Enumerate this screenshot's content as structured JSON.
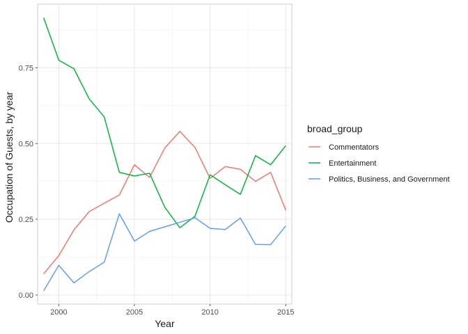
{
  "chart_data": {
    "type": "line",
    "xlabel": "Year",
    "ylabel": "Occupation of Guests, by year",
    "xlim": [
      1998.6,
      2015.4
    ],
    "ylim": [
      -0.03,
      0.96
    ],
    "x_ticks": [
      2000,
      2005,
      2010,
      2015
    ],
    "x_tick_labels": [
      "2000",
      "2005",
      "2010",
      "2015"
    ],
    "y_ticks": [
      0.0,
      0.25,
      0.5,
      0.75
    ],
    "y_tick_labels": [
      "0.00",
      "0.25",
      "0.50",
      "0.75"
    ],
    "grid": true,
    "legend": {
      "title": "broad_group",
      "position": "right"
    },
    "x": [
      1999,
      2000,
      2001,
      2002,
      2003,
      2004,
      2005,
      2006,
      2007,
      2008,
      2009,
      2010,
      2011,
      2012,
      2013,
      2014,
      2015
    ],
    "series": [
      {
        "name": "Commentators",
        "color": "#F8766D",
        "values": [
          0.07,
          0.13,
          0.215,
          0.275,
          0.303,
          0.33,
          0.43,
          0.388,
          0.485,
          0.54,
          0.487,
          0.385,
          0.424,
          0.415,
          0.375,
          0.405,
          0.28
        ]
      },
      {
        "name": "Entertainment",
        "color": "#00BA38",
        "values": [
          0.915,
          0.775,
          0.747,
          0.648,
          0.588,
          0.405,
          0.393,
          0.402,
          0.29,
          0.222,
          0.26,
          0.397,
          0.364,
          0.332,
          0.46,
          0.43,
          0.493
        ]
      },
      {
        "name": "Politics, Business, and Government",
        "color": "#619CFF",
        "values": [
          0.014,
          0.098,
          0.04,
          0.077,
          0.108,
          0.268,
          0.178,
          0.21,
          0.225,
          0.24,
          0.255,
          0.22,
          0.216,
          0.254,
          0.167,
          0.166,
          0.228
        ]
      }
    ]
  }
}
